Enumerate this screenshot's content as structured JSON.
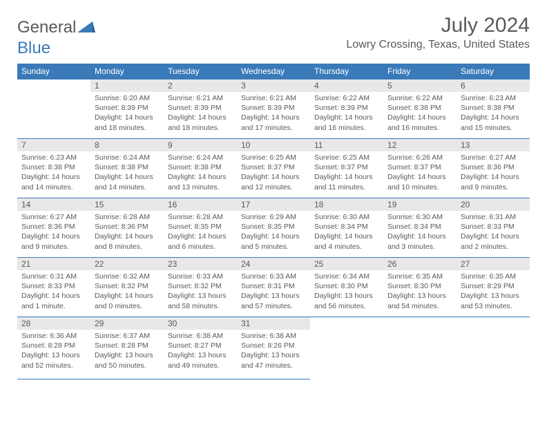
{
  "logo": {
    "text1": "General",
    "text2": "Blue"
  },
  "title": "July 2024",
  "location": "Lowry Crossing, Texas, United States",
  "colors": {
    "header_bg": "#3a7ab8",
    "header_text": "#ffffff",
    "daynum_bg": "#e8e8e8",
    "body_text": "#58595b",
    "rule": "#3a7ab8",
    "page_bg": "#ffffff"
  },
  "typography": {
    "title_fontsize": 30,
    "location_fontsize": 16,
    "dayheader_fontsize": 12,
    "cell_fontsize": 10.5
  },
  "layout": {
    "columns": 7,
    "rows": 5
  },
  "day_headers": [
    "Sunday",
    "Monday",
    "Tuesday",
    "Wednesday",
    "Thursday",
    "Friday",
    "Saturday"
  ],
  "weeks": [
    [
      null,
      {
        "n": "1",
        "sunrise": "Sunrise: 6:20 AM",
        "sunset": "Sunset: 8:39 PM",
        "daylight": "Daylight: 14 hours and 18 minutes."
      },
      {
        "n": "2",
        "sunrise": "Sunrise: 6:21 AM",
        "sunset": "Sunset: 8:39 PM",
        "daylight": "Daylight: 14 hours and 18 minutes."
      },
      {
        "n": "3",
        "sunrise": "Sunrise: 6:21 AM",
        "sunset": "Sunset: 8:39 PM",
        "daylight": "Daylight: 14 hours and 17 minutes."
      },
      {
        "n": "4",
        "sunrise": "Sunrise: 6:22 AM",
        "sunset": "Sunset: 8:39 PM",
        "daylight": "Daylight: 14 hours and 16 minutes."
      },
      {
        "n": "5",
        "sunrise": "Sunrise: 6:22 AM",
        "sunset": "Sunset: 8:38 PM",
        "daylight": "Daylight: 14 hours and 16 minutes."
      },
      {
        "n": "6",
        "sunrise": "Sunrise: 6:23 AM",
        "sunset": "Sunset: 8:38 PM",
        "daylight": "Daylight: 14 hours and 15 minutes."
      }
    ],
    [
      {
        "n": "7",
        "sunrise": "Sunrise: 6:23 AM",
        "sunset": "Sunset: 8:38 PM",
        "daylight": "Daylight: 14 hours and 14 minutes."
      },
      {
        "n": "8",
        "sunrise": "Sunrise: 6:24 AM",
        "sunset": "Sunset: 8:38 PM",
        "daylight": "Daylight: 14 hours and 14 minutes."
      },
      {
        "n": "9",
        "sunrise": "Sunrise: 6:24 AM",
        "sunset": "Sunset: 8:38 PM",
        "daylight": "Daylight: 14 hours and 13 minutes."
      },
      {
        "n": "10",
        "sunrise": "Sunrise: 6:25 AM",
        "sunset": "Sunset: 8:37 PM",
        "daylight": "Daylight: 14 hours and 12 minutes."
      },
      {
        "n": "11",
        "sunrise": "Sunrise: 6:25 AM",
        "sunset": "Sunset: 8:37 PM",
        "daylight": "Daylight: 14 hours and 11 minutes."
      },
      {
        "n": "12",
        "sunrise": "Sunrise: 6:26 AM",
        "sunset": "Sunset: 8:37 PM",
        "daylight": "Daylight: 14 hours and 10 minutes."
      },
      {
        "n": "13",
        "sunrise": "Sunrise: 6:27 AM",
        "sunset": "Sunset: 8:36 PM",
        "daylight": "Daylight: 14 hours and 9 minutes."
      }
    ],
    [
      {
        "n": "14",
        "sunrise": "Sunrise: 6:27 AM",
        "sunset": "Sunset: 8:36 PM",
        "daylight": "Daylight: 14 hours and 9 minutes."
      },
      {
        "n": "15",
        "sunrise": "Sunrise: 6:28 AM",
        "sunset": "Sunset: 8:36 PM",
        "daylight": "Daylight: 14 hours and 8 minutes."
      },
      {
        "n": "16",
        "sunrise": "Sunrise: 6:28 AM",
        "sunset": "Sunset: 8:35 PM",
        "daylight": "Daylight: 14 hours and 6 minutes."
      },
      {
        "n": "17",
        "sunrise": "Sunrise: 6:29 AM",
        "sunset": "Sunset: 8:35 PM",
        "daylight": "Daylight: 14 hours and 5 minutes."
      },
      {
        "n": "18",
        "sunrise": "Sunrise: 6:30 AM",
        "sunset": "Sunset: 8:34 PM",
        "daylight": "Daylight: 14 hours and 4 minutes."
      },
      {
        "n": "19",
        "sunrise": "Sunrise: 6:30 AM",
        "sunset": "Sunset: 8:34 PM",
        "daylight": "Daylight: 14 hours and 3 minutes."
      },
      {
        "n": "20",
        "sunrise": "Sunrise: 6:31 AM",
        "sunset": "Sunset: 8:33 PM",
        "daylight": "Daylight: 14 hours and 2 minutes."
      }
    ],
    [
      {
        "n": "21",
        "sunrise": "Sunrise: 6:31 AM",
        "sunset": "Sunset: 8:33 PM",
        "daylight": "Daylight: 14 hours and 1 minute."
      },
      {
        "n": "22",
        "sunrise": "Sunrise: 6:32 AM",
        "sunset": "Sunset: 8:32 PM",
        "daylight": "Daylight: 14 hours and 0 minutes."
      },
      {
        "n": "23",
        "sunrise": "Sunrise: 6:33 AM",
        "sunset": "Sunset: 8:32 PM",
        "daylight": "Daylight: 13 hours and 58 minutes."
      },
      {
        "n": "24",
        "sunrise": "Sunrise: 6:33 AM",
        "sunset": "Sunset: 8:31 PM",
        "daylight": "Daylight: 13 hours and 57 minutes."
      },
      {
        "n": "25",
        "sunrise": "Sunrise: 6:34 AM",
        "sunset": "Sunset: 8:30 PM",
        "daylight": "Daylight: 13 hours and 56 minutes."
      },
      {
        "n": "26",
        "sunrise": "Sunrise: 6:35 AM",
        "sunset": "Sunset: 8:30 PM",
        "daylight": "Daylight: 13 hours and 54 minutes."
      },
      {
        "n": "27",
        "sunrise": "Sunrise: 6:35 AM",
        "sunset": "Sunset: 8:29 PM",
        "daylight": "Daylight: 13 hours and 53 minutes."
      }
    ],
    [
      {
        "n": "28",
        "sunrise": "Sunrise: 6:36 AM",
        "sunset": "Sunset: 8:28 PM",
        "daylight": "Daylight: 13 hours and 52 minutes."
      },
      {
        "n": "29",
        "sunrise": "Sunrise: 6:37 AM",
        "sunset": "Sunset: 8:28 PM",
        "daylight": "Daylight: 13 hours and 50 minutes."
      },
      {
        "n": "30",
        "sunrise": "Sunrise: 6:38 AM",
        "sunset": "Sunset: 8:27 PM",
        "daylight": "Daylight: 13 hours and 49 minutes."
      },
      {
        "n": "31",
        "sunrise": "Sunrise: 6:38 AM",
        "sunset": "Sunset: 8:26 PM",
        "daylight": "Daylight: 13 hours and 47 minutes."
      },
      null,
      null,
      null
    ]
  ]
}
